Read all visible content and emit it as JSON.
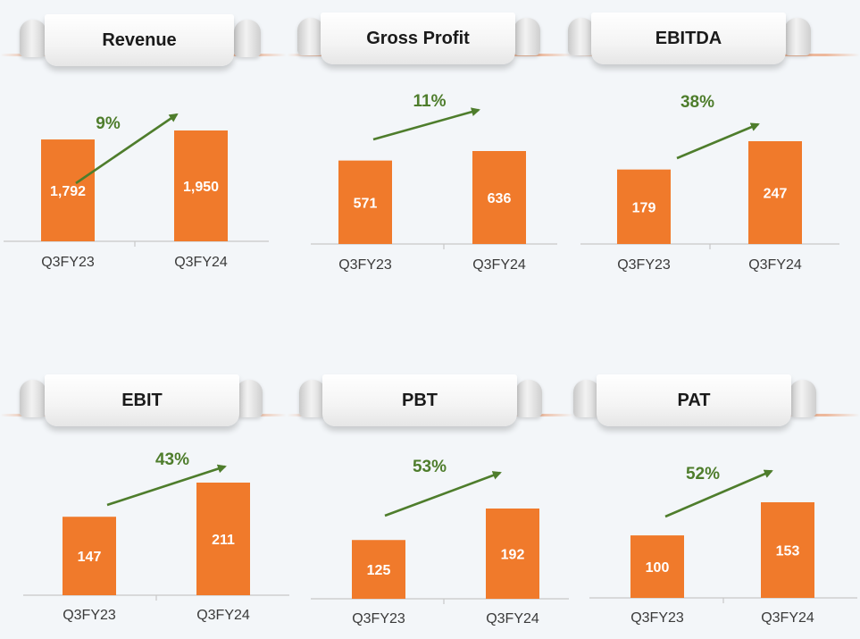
{
  "colors": {
    "bar": "#f07a2b",
    "arrow": "#4e7d2c",
    "axis": "#c8c8c8"
  },
  "chart_data": [
    {
      "type": "bar",
      "title": "Revenue",
      "categories": [
        "Q3FY23",
        "Q3FY24"
      ],
      "values": [
        1792,
        1950
      ],
      "value_labels": [
        "1,792",
        "1,950"
      ],
      "growth": "9%"
    },
    {
      "type": "bar",
      "title": "Gross Profit",
      "categories": [
        "Q3FY23",
        "Q3FY24"
      ],
      "values": [
        571,
        636
      ],
      "value_labels": [
        "571",
        "636"
      ],
      "growth": "11%"
    },
    {
      "type": "bar",
      "title": "EBITDA",
      "categories": [
        "Q3FY23",
        "Q3FY24"
      ],
      "values": [
        179,
        247
      ],
      "value_labels": [
        "179",
        "247"
      ],
      "growth": "38%"
    },
    {
      "type": "bar",
      "title": "EBIT",
      "categories": [
        "Q3FY23",
        "Q3FY24"
      ],
      "values": [
        147,
        211
      ],
      "value_labels": [
        "147",
        "211"
      ],
      "growth": "43%"
    },
    {
      "type": "bar",
      "title": "PBT",
      "categories": [
        "Q3FY23",
        "Q3FY24"
      ],
      "values": [
        125,
        192
      ],
      "value_labels": [
        "125",
        "192"
      ],
      "growth": "53%"
    },
    {
      "type": "bar",
      "title": "PAT",
      "categories": [
        "Q3FY23",
        "Q3FY24"
      ],
      "values": [
        100,
        153
      ],
      "value_labels": [
        "100",
        "153"
      ],
      "growth": "52%"
    }
  ]
}
